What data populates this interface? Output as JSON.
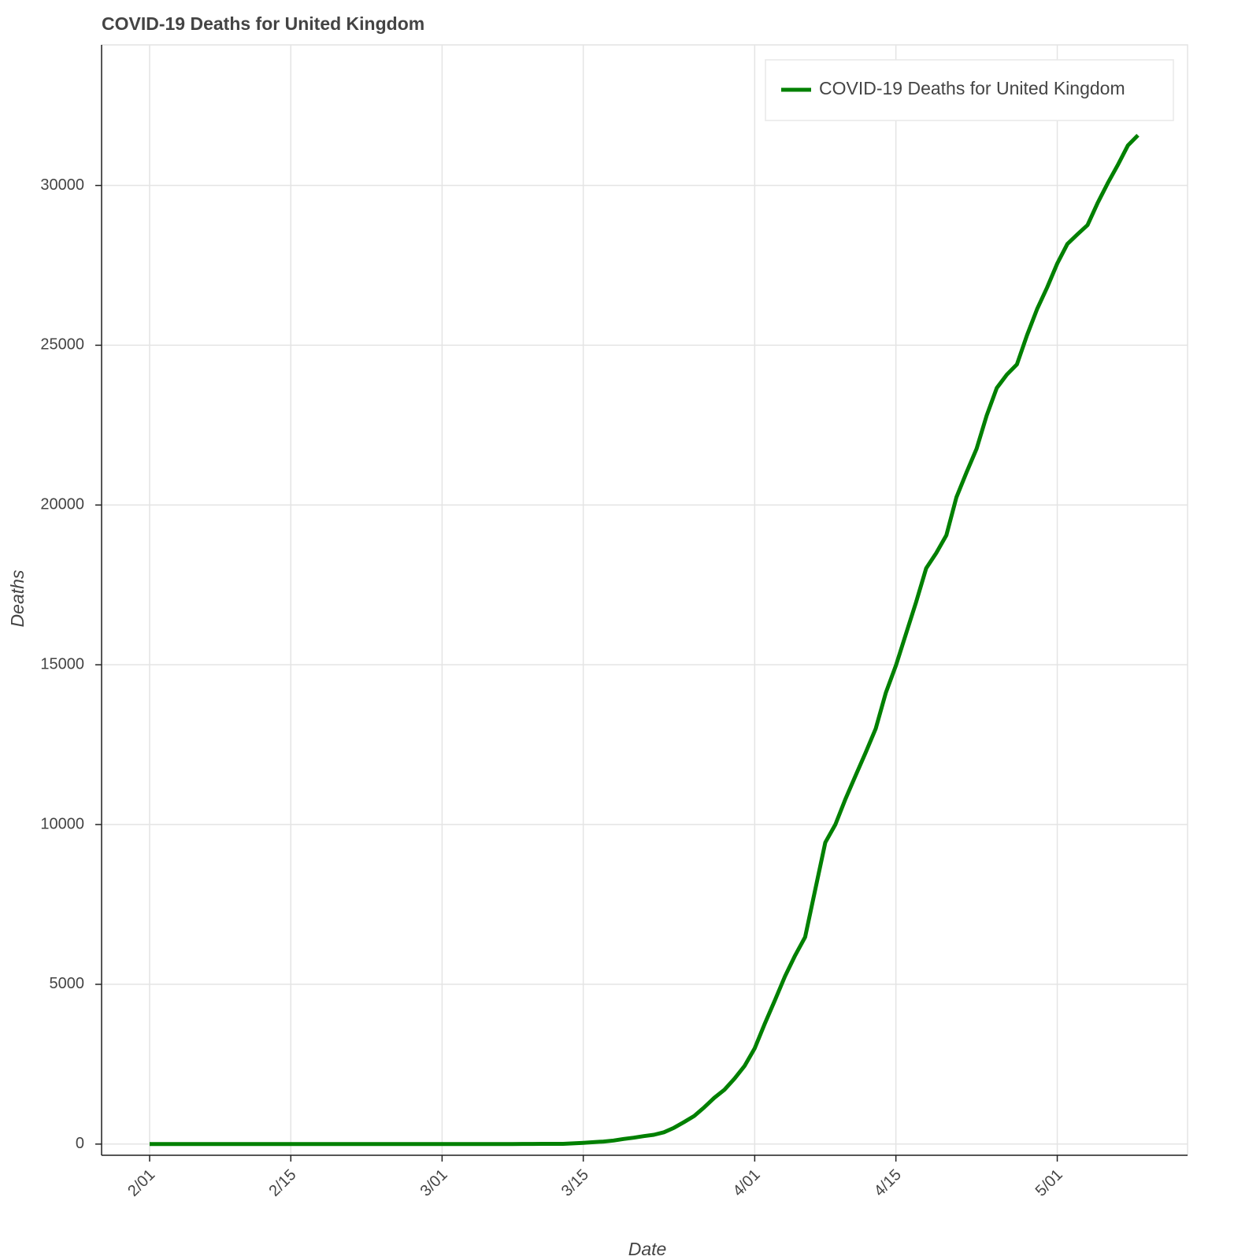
{
  "chart_data": {
    "type": "line",
    "title": "COVID-19 Deaths for United Kingdom",
    "x_label": "Date",
    "y_label": "Deaths",
    "categories": [
      "2/01",
      null,
      null,
      null,
      null,
      null,
      null,
      null,
      null,
      null,
      null,
      null,
      null,
      null,
      "2/15",
      null,
      null,
      null,
      null,
      null,
      null,
      null,
      null,
      null,
      null,
      null,
      null,
      null,
      null,
      "3/01",
      null,
      null,
      null,
      null,
      null,
      null,
      null,
      null,
      null,
      null,
      null,
      null,
      null,
      "3/15",
      null,
      null,
      null,
      null,
      null,
      null,
      null,
      null,
      null,
      null,
      null,
      null,
      null,
      null,
      null,
      null,
      "4/01",
      null,
      null,
      null,
      null,
      null,
      null,
      null,
      null,
      null,
      null,
      null,
      null,
      null,
      "4/15",
      null,
      null,
      null,
      null,
      null,
      null,
      null,
      null,
      null,
      null,
      null,
      null,
      null,
      null,
      null,
      "5/01",
      null,
      null,
      null,
      null,
      null,
      null,
      null,
      null
    ],
    "series": [
      {
        "name": "COVID-19 Deaths for United Kingdom",
        "color": "#008000",
        "values": [
          0,
          0,
          0,
          0,
          0,
          0,
          0,
          0,
          0,
          0,
          0,
          0,
          0,
          0,
          0,
          0,
          0,
          0,
          0,
          0,
          0,
          0,
          0,
          0,
          0,
          0,
          0,
          0,
          0,
          0,
          0,
          0,
          0,
          1,
          2,
          2,
          3,
          4,
          6,
          8,
          8,
          8,
          21,
          40,
          60,
          80,
          110,
          160,
          200,
          250,
          290,
          370,
          510,
          690,
          880,
          1150,
          1450,
          1700,
          2050,
          2450,
          3000,
          3770,
          4500,
          5250,
          5900,
          6480,
          7960,
          9440,
          10000,
          10800,
          11530,
          12250,
          13000,
          14120,
          14980,
          15970,
          16960,
          18020,
          18500,
          19050,
          20240,
          21020,
          21760,
          22800,
          23660,
          24080,
          24400,
          25310,
          26130,
          26810,
          27560,
          28170,
          28470,
          28760,
          29450,
          30070,
          30640,
          31250,
          31570
        ]
      }
    ],
    "ylim": [
      -350,
      34400
    ],
    "yticks": [
      0,
      5000,
      10000,
      15000,
      20000,
      25000,
      30000
    ],
    "grid": true,
    "legend": "top-right"
  }
}
